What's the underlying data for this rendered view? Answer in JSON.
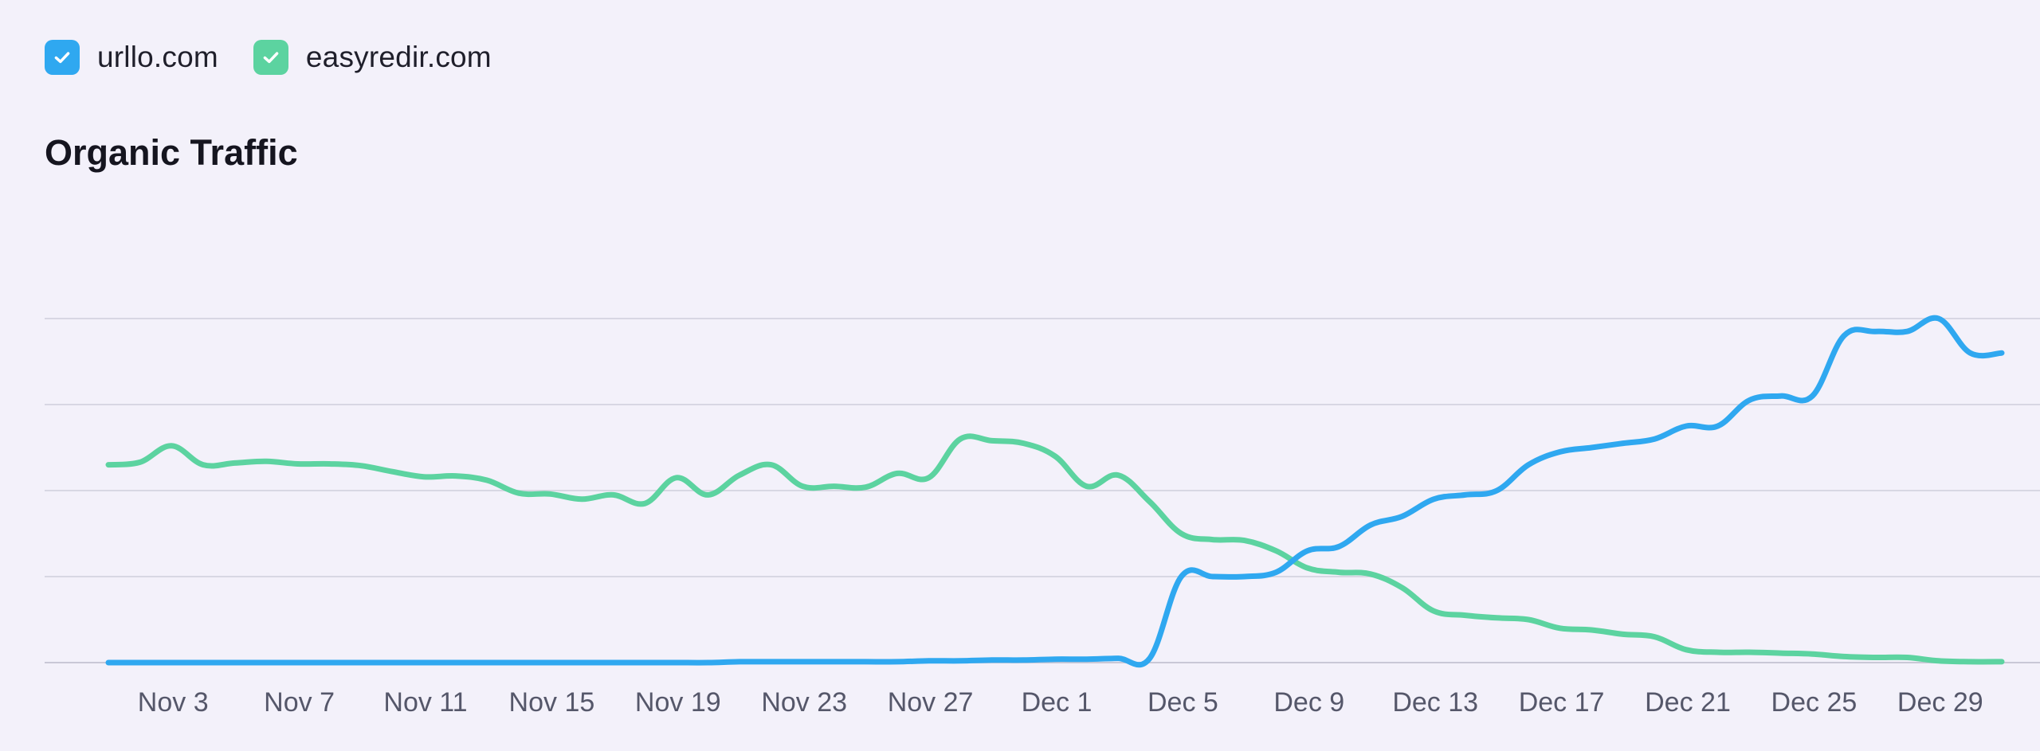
{
  "legend": [
    {
      "label": "urllo.com",
      "color": "#2fa8f0",
      "checked": true,
      "icon": "check-icon"
    },
    {
      "label": "easyredir.com",
      "color": "#5cd3a0",
      "checked": true,
      "icon": "check-icon"
    }
  ],
  "chart_data": {
    "type": "line",
    "title": "Organic Traffic",
    "xlabel": "",
    "ylabel": "",
    "x_start": "Nov 1",
    "tick_labels": [
      "Nov 3",
      "Nov 7",
      "Nov 11",
      "Nov 15",
      "Nov 19",
      "Nov 23",
      "Nov 27",
      "Dec 1",
      "Dec 5",
      "Dec 9",
      "Dec 13",
      "Dec 17",
      "Dec 21",
      "Dec 25",
      "Dec 29"
    ],
    "ylim": [
      0,
      4
    ],
    "grid": true,
    "y_tick_labels_shown": false,
    "series": [
      {
        "name": "urllo.com",
        "color": "#2fa8f0",
        "values": [
          0,
          0,
          0,
          0,
          0,
          0,
          0,
          0,
          0,
          0,
          0,
          0,
          0,
          0,
          0,
          0,
          0,
          0,
          0,
          0,
          0.01,
          0.01,
          0.01,
          0.01,
          0.01,
          0.01,
          0.02,
          0.02,
          0.03,
          0.03,
          0.04,
          0.04,
          0.05,
          0.05,
          1.0,
          1.0,
          1.0,
          1.05,
          1.3,
          1.35,
          1.6,
          1.7,
          1.9,
          1.95,
          2.0,
          2.3,
          2.45,
          2.5,
          2.55,
          2.6,
          2.75,
          2.75,
          3.05,
          3.1,
          3.1,
          3.8,
          3.85,
          3.85,
          4.0,
          3.6,
          3.6
        ]
      },
      {
        "name": "easyredir.com",
        "color": "#5cd3a0",
        "values": [
          2.3,
          2.33,
          2.52,
          2.3,
          2.32,
          2.34,
          2.31,
          2.31,
          2.29,
          2.22,
          2.16,
          2.17,
          2.12,
          1.97,
          1.96,
          1.9,
          1.95,
          1.85,
          2.15,
          1.95,
          2.18,
          2.3,
          2.05,
          2.05,
          2.04,
          2.2,
          2.15,
          2.6,
          2.58,
          2.55,
          2.4,
          2.05,
          2.18,
          1.87,
          1.5,
          1.43,
          1.42,
          1.3,
          1.1,
          1.05,
          1.03,
          0.87,
          0.6,
          0.55,
          0.52,
          0.5,
          0.4,
          0.38,
          0.33,
          0.3,
          0.15,
          0.12,
          0.12,
          0.11,
          0.1,
          0.07,
          0.06,
          0.06,
          0.02,
          0.01,
          0.01
        ]
      }
    ]
  }
}
